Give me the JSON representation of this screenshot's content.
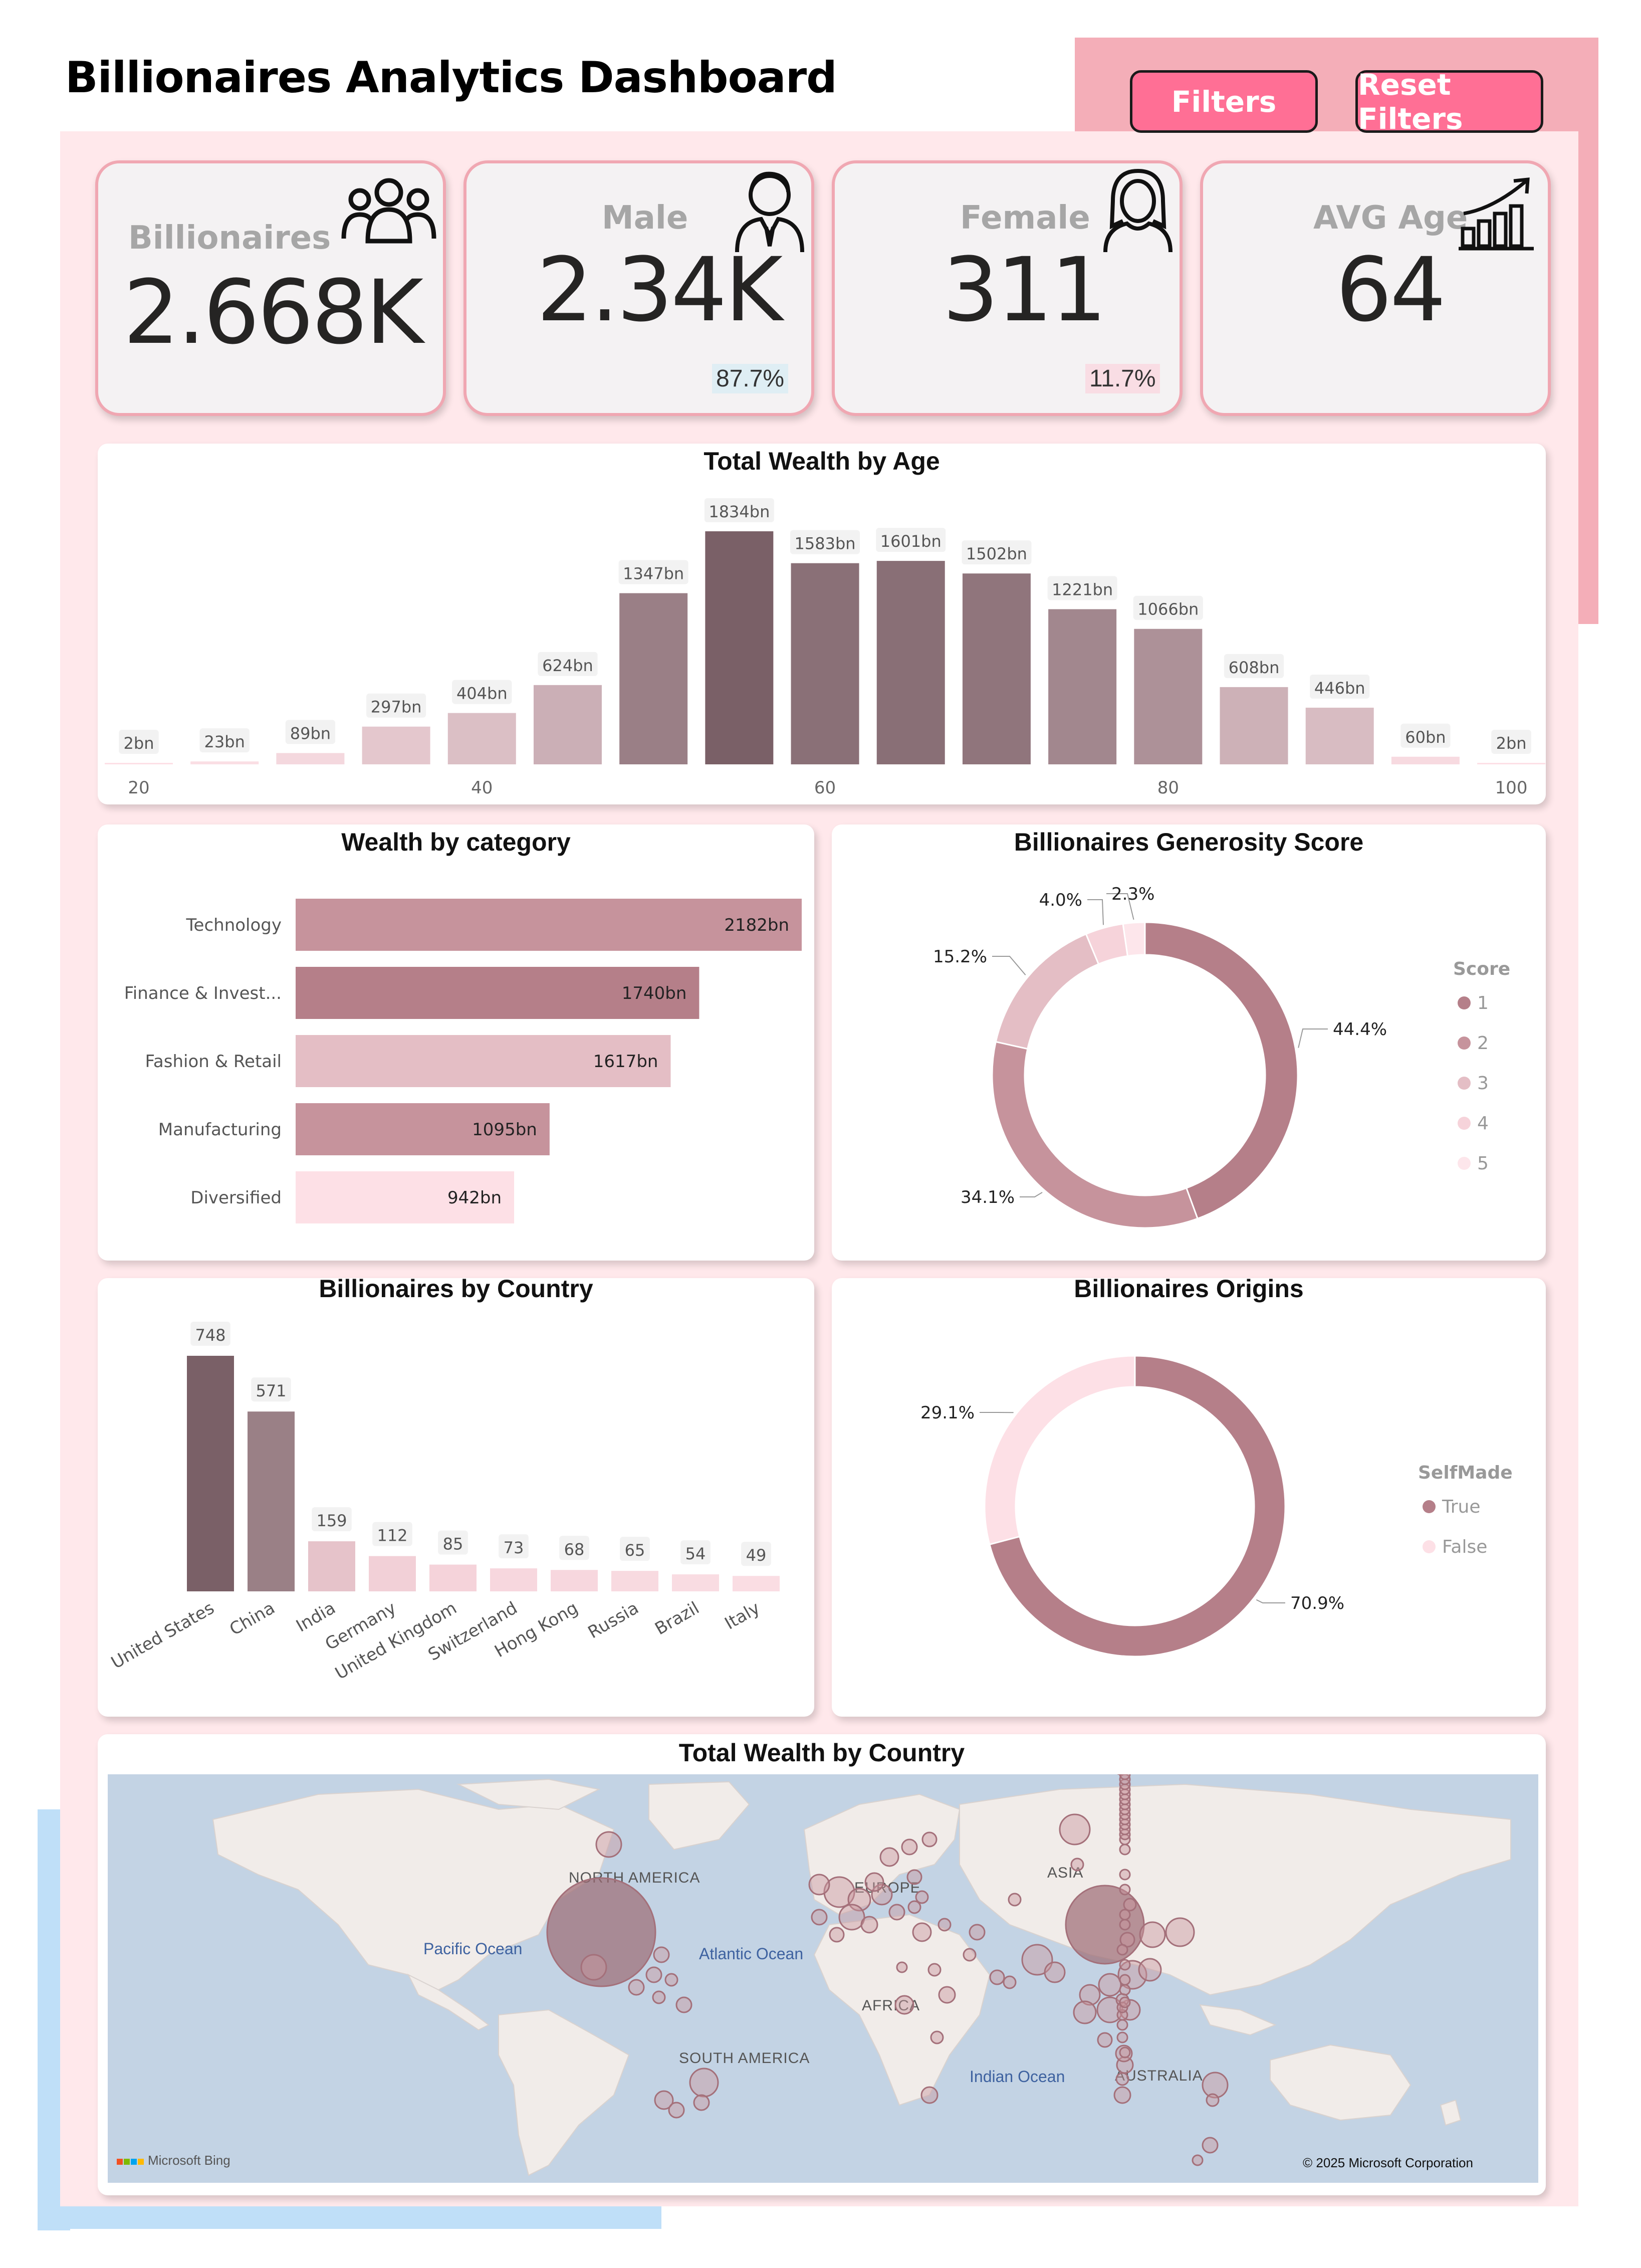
{
  "title": "Billionaires Analytics Dashboard",
  "buttons": {
    "filters": "Filters",
    "reset": "Reset Filters"
  },
  "colors": {
    "accent": "#ff6f95",
    "card_border": "#f0a7b2",
    "bar_dark": "#7a6067",
    "bar_light": "#fde0e6"
  },
  "kpis": {
    "billionaires": {
      "label": "Billionaires",
      "value": "2.668K",
      "icon": "people-group-icon"
    },
    "male": {
      "label": "Male",
      "value": "2.34K",
      "pct": "87.7%",
      "icon": "man-icon"
    },
    "female": {
      "label": "Female",
      "value": "311",
      "pct": "11.7%",
      "icon": "woman-icon"
    },
    "avg_age": {
      "label": "AVG Age",
      "value": "64",
      "icon": "growth-chart-icon"
    }
  },
  "charts": {
    "age": {
      "chart_data": {
        "type": "bar",
        "title": "Total Wealth by Age",
        "x": [
          20,
          25,
          30,
          35,
          40,
          45,
          50,
          55,
          60,
          65,
          70,
          75,
          80,
          85,
          90,
          95,
          100
        ],
        "values": [
          2,
          23,
          89,
          297,
          404,
          624,
          1347,
          1834,
          1583,
          1601,
          1502,
          1221,
          1066,
          608,
          446,
          60,
          2
        ],
        "labels": [
          "2bn",
          "23bn",
          "89bn",
          "297bn",
          "404bn",
          "624bn",
          "1347bn",
          "1834bn",
          "1583bn",
          "1601bn",
          "1502bn",
          "1221bn",
          "1066bn",
          "608bn",
          "446bn",
          "60bn",
          "2bn"
        ],
        "ticks": [
          "20",
          "40",
          "60",
          "80",
          "100"
        ],
        "tick_values": [
          20,
          40,
          60,
          80,
          100
        ],
        "ylim": [
          0,
          1834
        ]
      }
    },
    "category": {
      "chart_data": {
        "type": "bar",
        "orientation": "horizontal",
        "title": "Wealth by category",
        "categories": [
          "Technology",
          "Finance & Invest...",
          "Fashion & Retail",
          "Manufacturing",
          "Diversified"
        ],
        "values": [
          2182,
          1740,
          1617,
          1095,
          942
        ],
        "labels": [
          "2182bn",
          "1740bn",
          "1617bn",
          "1095bn",
          "942bn"
        ],
        "colors": [
          "#c6939c",
          "#b57f89",
          "#e4bec5",
          "#c6939c",
          "#fde0e6"
        ]
      }
    },
    "generosity": {
      "chart_data": {
        "type": "pie",
        "title": "Billionaires Generosity Score",
        "legend_title": "Score",
        "categories": [
          "1",
          "2",
          "3",
          "4",
          "5"
        ],
        "values": [
          44.4,
          34.1,
          15.2,
          4.0,
          2.3
        ],
        "labels": [
          "44.4%",
          "34.1%",
          "15.2%",
          "4.0%",
          "2.3%"
        ],
        "colors": [
          "#b57f89",
          "#c6939c",
          "#e4bec5",
          "#f6d3da",
          "#fde6eb"
        ],
        "legend_position": "right"
      }
    },
    "country": {
      "chart_data": {
        "type": "bar",
        "title": "Billionaires by Country",
        "categories": [
          "United States",
          "China",
          "India",
          "Germany",
          "United Kingdom",
          "Switzerland",
          "Hong Kong",
          "Russia",
          "Brazil",
          "Italy"
        ],
        "values": [
          748,
          571,
          159,
          112,
          85,
          73,
          68,
          65,
          54,
          49
        ],
        "labels": [
          "748",
          "571",
          "159",
          "112",
          "85",
          "73",
          "68",
          "65",
          "54",
          "49"
        ],
        "colors": [
          "#7a6067",
          "#9a8086",
          "#e6c3ca",
          "#f2d0d7",
          "#f5d3da",
          "#f7d7de",
          "#f7d7de",
          "#f8dae0",
          "#f9dce2",
          "#fadde3"
        ],
        "ylim": [
          0,
          748
        ]
      }
    },
    "origins": {
      "chart_data": {
        "type": "pie",
        "title": "Billionaires Origins",
        "legend_title": "SelfMade",
        "categories": [
          "True",
          "False"
        ],
        "values": [
          70.9,
          29.1
        ],
        "labels": [
          "70.9%",
          "29.1%"
        ],
        "colors": [
          "#b57f89",
          "#fde0e6"
        ],
        "legend_position": "right"
      }
    },
    "map": {
      "title": "Total Wealth by Country",
      "labels": {
        "north_america": "NORTH AMERICA",
        "europe": "EUROPE",
        "asia": "ASIA",
        "africa": "AFRICA",
        "south_america": "SOUTH AMERICA",
        "australia": "AUSTRALIA"
      },
      "oceans": {
        "pacific": "Pacific Ocean",
        "atlantic": "Atlantic Ocean",
        "indian": "Indian Ocean"
      },
      "brand": "Microsoft Bing",
      "copyright": "© 2025 Microsoft Corporation"
    }
  }
}
